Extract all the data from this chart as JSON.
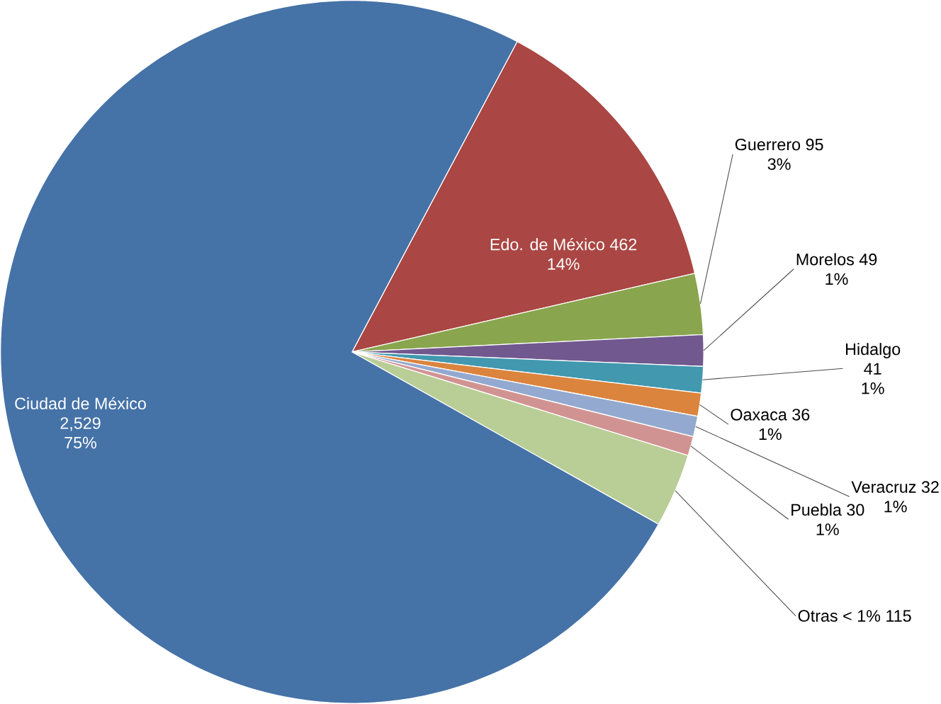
{
  "chart_data": {
    "type": "pie",
    "categories": [
      "Edo. de México",
      "Guerrero",
      "Morelos",
      "Hidalgo",
      "Oaxaca",
      "Veracruz",
      "Puebla",
      "Otras < 1%",
      "Ciudad de México"
    ],
    "values": [
      462,
      95,
      49,
      41,
      36,
      32,
      30,
      115,
      2529
    ],
    "value_labels": [
      "462",
      "95",
      "49",
      "41",
      "36",
      "32",
      "30",
      "115",
      "2,529"
    ],
    "colors": [
      "#aa4643",
      "#89a54e",
      "#71588f",
      "#4198af",
      "#db843d",
      "#93a9cf",
      "#d19392",
      "#b9cd96",
      "#4572a7"
    ],
    "annotations": [
      "14%",
      "3%",
      "1%",
      "1%",
      "1%",
      "1%",
      "1%",
      null,
      "75%"
    ],
    "legend": false
  }
}
